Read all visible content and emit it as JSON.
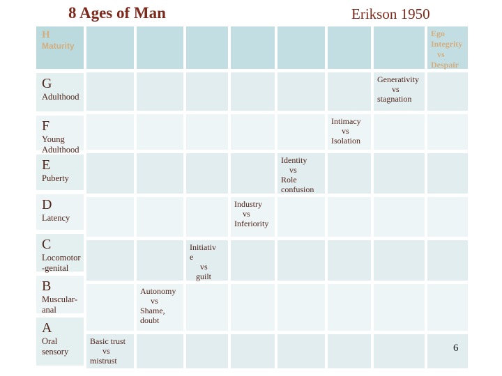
{
  "slide": {
    "title": "8 Ages of Man",
    "subtitle": "Erikson 1950",
    "page_number": "6"
  },
  "colors": {
    "title_text": "#7c2a1c",
    "body_text": "#4f241a",
    "tan_text": "#d3ae80",
    "row_h_cell_fill": "#c3dee3",
    "row_h_label_fill": "#badade",
    "row_even_cell_fill": "#e1edef",
    "row_odd_cell_fill": "#eef5f7",
    "label_even_fill": "#e4eff0",
    "label_odd_fill": "#edf4f5",
    "background": "#ffffff"
  },
  "stages": [
    {
      "letter": "H",
      "name": "Maturity",
      "crisis": "Ego\nIntegrity\n   vs\nDespair"
    },
    {
      "letter": "G",
      "name": "Adulthood",
      "crisis": "Generativity\n       vs\nstagnation"
    },
    {
      "letter": "F",
      "name": "Young\nAdulthood",
      "crisis": "Intimacy\n     vs\nIsolation"
    },
    {
      "letter": "E",
      "name": "Puberty",
      "crisis": "Identity\n    vs\nRole\nconfusion"
    },
    {
      "letter": "D",
      "name": "Latency",
      "crisis": "Industry\n    vs\nInferiority"
    },
    {
      "letter": "C",
      "name": "Locomotor\n-genital",
      "crisis": "Initiativ\ne\n     vs\n   guilt"
    },
    {
      "letter": "B",
      "name": "Muscular-\nanal",
      "crisis": "Autonomy\n     vs\nShame,\ndoubt"
    },
    {
      "letter": "A",
      "name": "Oral\nsensory",
      "crisis": "Basic trust\n      vs\nmistrust"
    }
  ]
}
